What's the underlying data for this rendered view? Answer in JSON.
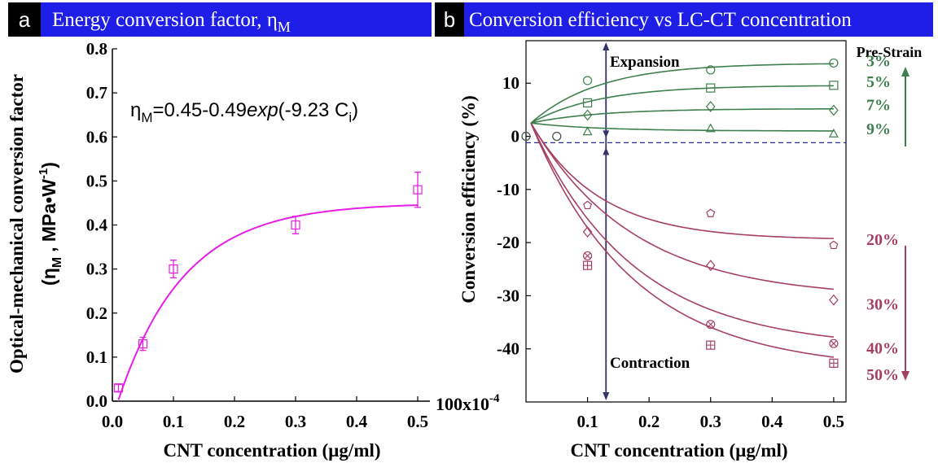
{
  "panels": {
    "a": {
      "letter": "a",
      "title": "Energy conversion factor, η",
      "title_sub": "M"
    },
    "b": {
      "letter": "b",
      "title": "Conversion efficiency vs LC-CT concentration"
    }
  },
  "colors": {
    "panel_title_bg": "#1e1ee6",
    "letter_bg": "#000000",
    "fit_a": "#e61ee6",
    "green": "#3f7f4f",
    "red": "#a64060",
    "axis_line": "#35306e",
    "dashed": "#2b2b8a"
  },
  "chart_data": [
    {
      "type": "scatter",
      "panel": "a",
      "xlabel": "CNT concentration (µg/ml)",
      "ylabel": "Optical-mechanical conversion factor",
      "ylabel_unit_pre": "(η",
      "ylabel_unit_sub": "M",
      "ylabel_unit_post": ", MPa•W",
      "ylabel_unit_sup": "-1",
      "ylabel_unit_close": ")",
      "xlim": [
        0,
        0.52
      ],
      "ylim": [
        0,
        0.8
      ],
      "xticks": [
        "0.0",
        "0.1",
        "0.2",
        "0.3",
        "0.4",
        "0.5"
      ],
      "yticks": [
        "0.0",
        "0.1",
        "0.2",
        "0.3",
        "0.4",
        "0.5",
        "0.6",
        "0.7",
        "0.8"
      ],
      "equation": {
        "lhs": "η",
        "lhs_sub": "M",
        "mid": "=0.45-0.49",
        "func": "exp",
        "arg": "(-9.23 C",
        "arg_sub": "i",
        "close": ")"
      },
      "fit": {
        "a": 0.45,
        "b": 0.49,
        "k": 9.23,
        "x_start": 0.01,
        "x_end": 0.5
      },
      "series": [
        {
          "x": [
            0.01,
            0.05,
            0.1,
            0.3,
            0.5
          ],
          "y": [
            0.03,
            0.13,
            0.3,
            0.4,
            0.48
          ],
          "err": [
            0.008,
            0.015,
            0.02,
            0.02,
            0.04
          ],
          "marker": "square"
        }
      ]
    },
    {
      "type": "scatter",
      "panel": "b",
      "xlabel": "CNT concentration (µg/ml)",
      "ylabel": "Conversion efficiency (%)",
      "xlim": [
        0,
        0.52
      ],
      "ylim": [
        -50,
        18
      ],
      "xticks": [
        "0.1",
        "0.2",
        "0.3",
        "0.4",
        "0.5"
      ],
      "yticks": [
        "10",
        "0",
        "-10",
        "-20",
        "-30",
        "-40"
      ],
      "ybottom_label": "100x10",
      "ybottom_sup": "-4",
      "dashed_level": -1.2,
      "arrow_x": 0.13,
      "annotations": {
        "expansion": "Expansion",
        "contraction": "Contraction",
        "prestrain": "Pre-Strain"
      },
      "series": [
        {
          "name": "3%",
          "group": "green",
          "marker": "circle",
          "asym": 13.8,
          "k": 9,
          "x": [
            0.0,
            0.05,
            0.1,
            0.3,
            0.5
          ],
          "y": [
            0.0,
            0.0,
            10.5,
            12.5,
            13.8
          ]
        },
        {
          "name": "5%",
          "group": "green",
          "marker": "square",
          "asym": 9.6,
          "k": 9,
          "x": [
            0.1,
            0.3,
            0.5
          ],
          "y": [
            6.3,
            9.1,
            9.6
          ]
        },
        {
          "name": "7%",
          "group": "green",
          "marker": "diamond",
          "asym": 5.2,
          "k": 9,
          "x": [
            0.1,
            0.3,
            0.5
          ],
          "y": [
            4.0,
            5.6,
            4.9
          ]
        },
        {
          "name": "9%",
          "group": "green",
          "marker": "triangle",
          "asym": 1.0,
          "k": 9,
          "x": [
            0.1,
            0.3,
            0.5
          ],
          "y": [
            0.9,
            1.5,
            0.5
          ]
        },
        {
          "name": "20%",
          "group": "red",
          "marker": "pentagon",
          "asym": -19.5,
          "k": 9,
          "x": [
            0.1,
            0.3,
            0.5
          ],
          "y": [
            -13.0,
            -14.5,
            -20.5
          ]
        },
        {
          "name": "30%",
          "group": "red",
          "marker": "diamond",
          "asym": -30.5,
          "k": 6,
          "x": [
            0.1,
            0.3,
            0.5
          ],
          "y": [
            -18.0,
            -24.3,
            -30.8
          ]
        },
        {
          "name": "40%",
          "group": "red",
          "marker": "circle-cross",
          "asym": -40.0,
          "k": 6,
          "x": [
            0.1,
            0.3,
            0.5
          ],
          "y": [
            -22.5,
            -35.4,
            -39.0
          ]
        },
        {
          "name": "50%",
          "group": "red",
          "marker": "square-cross",
          "asym": -44.0,
          "k": 6,
          "x": [
            0.1,
            0.3,
            0.5
          ],
          "y": [
            -24.3,
            -39.3,
            -42.7
          ]
        }
      ]
    }
  ]
}
